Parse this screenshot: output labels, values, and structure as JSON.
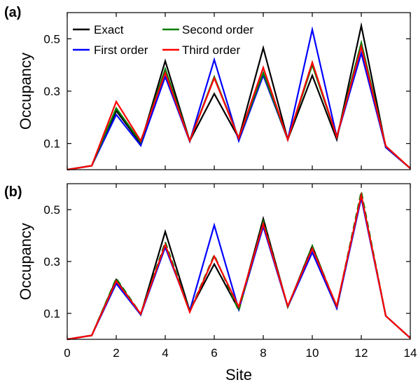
{
  "chart_data": [
    {
      "type": "line",
      "panel_label": "(a)",
      "ylabel": "Occupancy",
      "xlabel": "",
      "xlim": [
        0,
        14
      ],
      "ylim": [
        0,
        0.6
      ],
      "xticks": [
        0,
        2,
        4,
        6,
        8,
        10,
        12,
        14
      ],
      "yticks": [
        0.1,
        0.3,
        0.5
      ],
      "ytick_labels": [
        "0.1",
        "0.3",
        "0.5"
      ],
      "show_xtick_labels": false,
      "grid": false,
      "legend": "top-left",
      "x": [
        0,
        1,
        2,
        3,
        4,
        5,
        6,
        7,
        8,
        9,
        10,
        11,
        12,
        13,
        14
      ],
      "series": [
        {
          "name": "Exact",
          "color": "#000000",
          "dashed": false,
          "values": [
            0.0,
            0.015,
            0.225,
            0.1,
            0.415,
            0.11,
            0.29,
            0.12,
            0.465,
            0.115,
            0.36,
            0.115,
            0.55,
            0.085,
            0.005
          ]
        },
        {
          "name": "First order",
          "color": "#0000ff",
          "dashed": false,
          "values": [
            0.0,
            0.015,
            0.21,
            0.092,
            0.355,
            0.108,
            0.42,
            0.11,
            0.36,
            0.115,
            0.535,
            0.125,
            0.445,
            0.085,
            0.005
          ]
        },
        {
          "name": "Second order",
          "color": "#007f00",
          "dashed": false,
          "values": [
            0.0,
            0.015,
            0.235,
            0.105,
            0.385,
            0.11,
            0.355,
            0.12,
            0.37,
            0.115,
            0.4,
            0.125,
            0.485,
            0.09,
            0.005
          ]
        },
        {
          "name": "Third order",
          "color": "#ff0000",
          "dashed": false,
          "values": [
            0.0,
            0.015,
            0.26,
            0.11,
            0.37,
            0.11,
            0.35,
            0.12,
            0.39,
            0.115,
            0.41,
            0.125,
            0.47,
            0.09,
            0.005
          ]
        }
      ]
    },
    {
      "type": "line",
      "panel_label": "(b)",
      "ylabel": "Occupancy",
      "xlabel": "Site",
      "xlim": [
        0,
        14
      ],
      "ylim": [
        0,
        0.6
      ],
      "xticks": [
        0,
        2,
        4,
        6,
        8,
        10,
        12,
        14
      ],
      "yticks": [
        0.1,
        0.3,
        0.5
      ],
      "ytick_labels": [
        "0.1",
        "0.3",
        "0.5"
      ],
      "show_xtick_labels": true,
      "grid": false,
      "legend": "none",
      "x": [
        0,
        1,
        2,
        3,
        4,
        5,
        6,
        7,
        8,
        9,
        10,
        11,
        12,
        13,
        14
      ],
      "series": [
        {
          "name": "Exact",
          "color": "#000000",
          "dashed": false,
          "values": [
            0.0,
            0.015,
            0.23,
            0.095,
            0.415,
            0.11,
            0.29,
            0.115,
            0.465,
            0.125,
            0.36,
            0.12,
            0.555,
            0.09,
            0.005
          ]
        },
        {
          "name": "First order",
          "color": "#0000ff",
          "dashed": false,
          "values": [
            0.0,
            0.015,
            0.215,
            0.095,
            0.355,
            0.11,
            0.44,
            0.115,
            0.435,
            0.125,
            0.335,
            0.12,
            0.545,
            0.09,
            0.005
          ]
        },
        {
          "name": "Second order",
          "color": "#007f00",
          "dashed": true,
          "values": [
            0.0,
            0.015,
            0.235,
            0.098,
            0.375,
            0.108,
            0.325,
            0.11,
            0.455,
            0.125,
            0.36,
            0.125,
            0.57,
            0.09,
            0.005
          ]
        },
        {
          "name": "Third order",
          "color": "#ff0000",
          "dashed": false,
          "values": [
            0.0,
            0.015,
            0.225,
            0.098,
            0.365,
            0.105,
            0.32,
            0.125,
            0.445,
            0.128,
            0.35,
            0.128,
            0.555,
            0.09,
            0.005
          ]
        }
      ]
    }
  ]
}
